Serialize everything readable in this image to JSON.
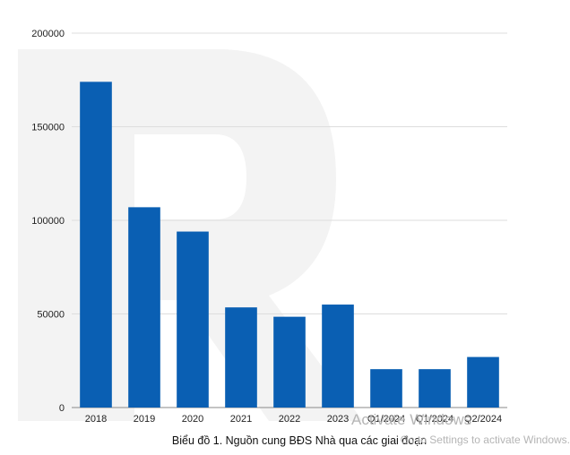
{
  "chart_data": {
    "type": "bar",
    "title": "Biểu đồ 1. Nguồn cung BĐS Nhà qua các giai đoạn",
    "xlabel": "",
    "ylabel": "",
    "categories": [
      "2018",
      "2019",
      "2020",
      "2021",
      "2022",
      "2023",
      "Q1/2024",
      "Q1/2024",
      "Q2/2024"
    ],
    "values": [
      174000,
      107000,
      94000,
      53500,
      48500,
      55000,
      20500,
      20500,
      27000
    ],
    "ylim": [
      0,
      200000
    ],
    "yticks": [
      0,
      50000,
      100000,
      150000,
      200000
    ],
    "ytick_labels": [
      "0",
      "50000",
      "100000",
      "150000",
      "200000"
    ],
    "grid": true,
    "bar_color": "#0a5fb3",
    "grid_color": "#dddddd"
  },
  "overlay": {
    "activate_title": "Activate Windows",
    "activate_subtitle": "Go to Settings to activate Windows."
  }
}
